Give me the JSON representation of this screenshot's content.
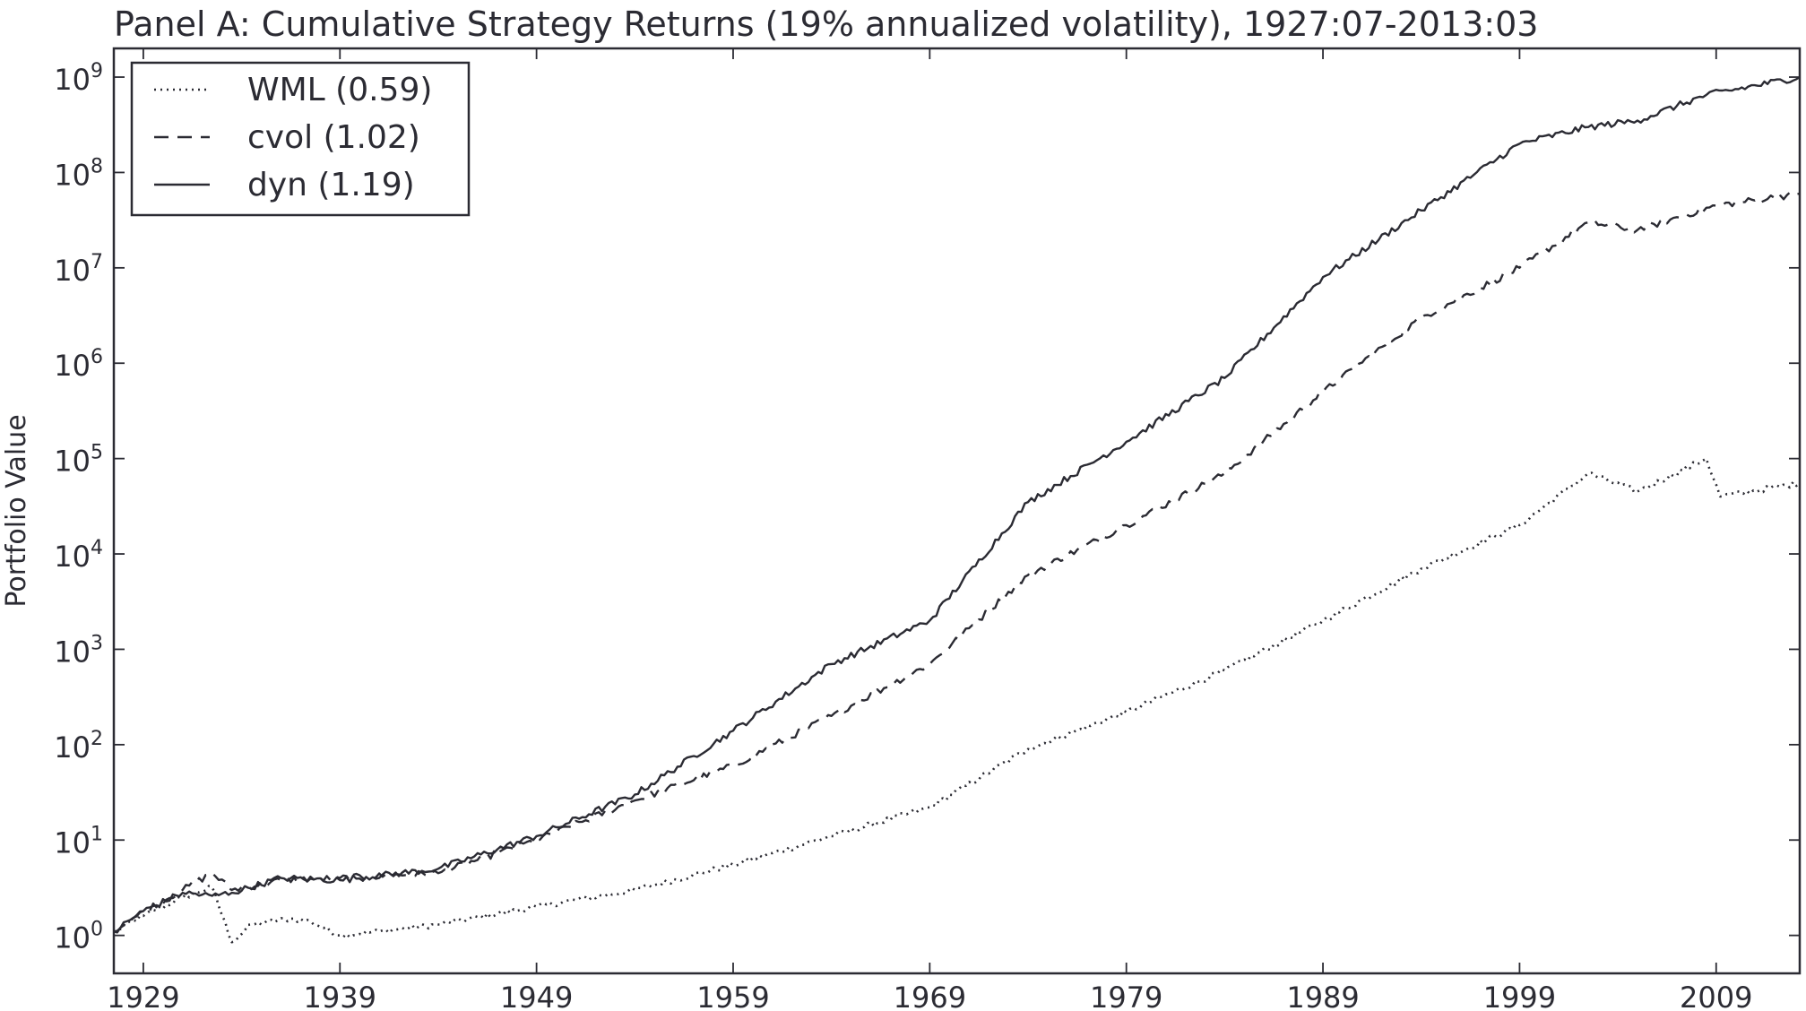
{
  "chart_data": {
    "type": "line",
    "title": "Panel A: Cumulative Strategy Returns (19% annualized volatility), 1927:07-2013:03",
    "ylabel": "Portfolio Value",
    "xlabel": "",
    "yscale": "log",
    "xlim": [
      1927.5,
      2013.25
    ],
    "ylim": [
      0.4,
      2000000000
    ],
    "grid": false,
    "legend_position": "top-left",
    "x_ticks": [
      {
        "value": 1929,
        "label": "1929"
      },
      {
        "value": 1939,
        "label": "1939"
      },
      {
        "value": 1949,
        "label": "1949"
      },
      {
        "value": 1959,
        "label": "1959"
      },
      {
        "value": 1969,
        "label": "1969"
      },
      {
        "value": 1979,
        "label": "1979"
      },
      {
        "value": 1989,
        "label": "1989"
      },
      {
        "value": 1999,
        "label": "1999"
      },
      {
        "value": 2009,
        "label": "2009"
      }
    ],
    "y_ticks": [
      {
        "value": 1,
        "base": "10",
        "exp": "0"
      },
      {
        "value": 10,
        "base": "10",
        "exp": "1"
      },
      {
        "value": 100,
        "base": "10",
        "exp": "2"
      },
      {
        "value": 1000,
        "base": "10",
        "exp": "3"
      },
      {
        "value": 10000,
        "base": "10",
        "exp": "4"
      },
      {
        "value": 100000,
        "base": "10",
        "exp": "5"
      },
      {
        "value": 1000000,
        "base": "10",
        "exp": "6"
      },
      {
        "value": 10000000,
        "base": "10",
        "exp": "7"
      },
      {
        "value": 100000000,
        "base": "10",
        "exp": "8"
      },
      {
        "value": 1000000000,
        "base": "10",
        "exp": "9"
      }
    ],
    "series": [
      {
        "name": "WML (0.59)",
        "style": "dotted",
        "x": [
          1927.5,
          1929,
          1931,
          1932.5,
          1933.5,
          1934.5,
          1936.5,
          1937.5,
          1939,
          1941,
          1944,
          1949,
          1954,
          1959,
          1964,
          1969,
          1974,
          1979,
          1984,
          1989,
          1994,
          1999,
          2002.5,
          2005,
          2008.5,
          2009.2,
          2013.25
        ],
        "y": [
          1.1,
          1.6,
          2.5,
          3.2,
          0.85,
          1.3,
          1.5,
          1.4,
          1.0,
          1.1,
          1.3,
          2.0,
          3.0,
          5.5,
          11,
          22,
          90,
          220,
          600,
          2000,
          7000,
          20000,
          70000,
          45000,
          100000,
          40000,
          55000
        ]
      },
      {
        "name": "cvol (1.02)",
        "style": "dashed",
        "x": [
          1927.5,
          1929,
          1931,
          1932.5,
          1933.5,
          1936,
          1939,
          1944,
          1949,
          1954,
          1959,
          1964,
          1969,
          1974,
          1979,
          1984,
          1989,
          1994,
          1999,
          2002.5,
          2005,
          2009,
          2013.25
        ],
        "y": [
          1.1,
          1.8,
          3.0,
          4.5,
          3.0,
          3.8,
          4.0,
          4.5,
          10,
          26,
          60,
          200,
          700,
          6000,
          20000,
          70000,
          500000,
          3000000,
          10000000,
          30000000,
          25000000,
          45000000,
          60000000
        ]
      },
      {
        "name": "dyn (1.19)",
        "style": "solid",
        "x": [
          1927.5,
          1929,
          1931,
          1932.5,
          1933.5,
          1936,
          1939,
          1944,
          1949,
          1954,
          1959,
          1964,
          1969,
          1974,
          1979,
          1984,
          1989,
          1994,
          1999,
          2002.5,
          2005,
          2008.5,
          2013.25
        ],
        "y": [
          1.1,
          1.8,
          2.8,
          2.6,
          2.8,
          4.0,
          3.8,
          5.0,
          11,
          30,
          140,
          700,
          2000,
          35000,
          150000,
          700000,
          8000000,
          40000000,
          200000000,
          300000000,
          350000000,
          650000000,
          1000000000
        ]
      }
    ]
  }
}
